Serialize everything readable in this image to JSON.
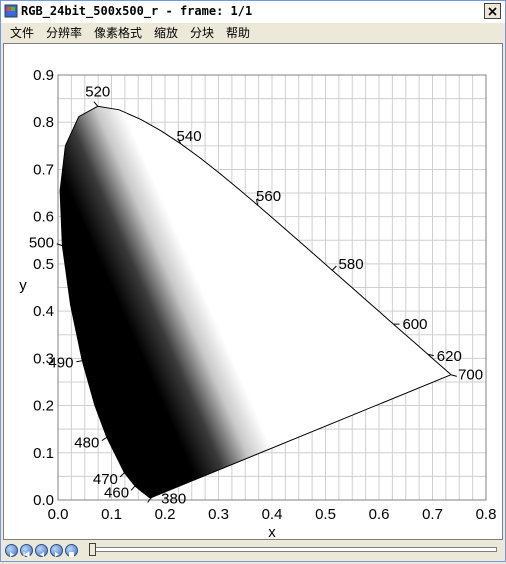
{
  "window": {
    "title": "RGB_24bit_500x500_r - frame: 1/1"
  },
  "menu": [
    "文件",
    "分辨率",
    "像素格式",
    "缩放",
    "分块",
    "帮助"
  ],
  "chart_data": {
    "type": "scatter",
    "title": "",
    "xlabel": "x",
    "ylabel": "y",
    "xlim": [
      0.0,
      0.8
    ],
    "ylim": [
      0.0,
      0.9
    ],
    "xticks": [
      "0.0",
      "0.1",
      "0.2",
      "0.3",
      "0.4",
      "0.5",
      "0.6",
      "0.7",
      "0.8"
    ],
    "yticks": [
      "0.0",
      "0.1",
      "0.2",
      "0.3",
      "0.4",
      "0.5",
      "0.6",
      "0.7",
      "0.8",
      "0.9"
    ],
    "grid": true,
    "locus": [
      [
        0.1741,
        0.005
      ],
      [
        0.1738,
        0.0049
      ],
      [
        0.1726,
        0.0048
      ],
      [
        0.1714,
        0.0051
      ],
      [
        0.1689,
        0.0069
      ],
      [
        0.1644,
        0.0109
      ],
      [
        0.1566,
        0.0177
      ],
      [
        0.144,
        0.0297
      ],
      [
        0.1241,
        0.0578
      ],
      [
        0.0913,
        0.1327
      ],
      [
        0.0687,
        0.2007
      ],
      [
        0.0454,
        0.295
      ],
      [
        0.0235,
        0.4127
      ],
      [
        0.0082,
        0.5384
      ],
      [
        0.0039,
        0.6548
      ],
      [
        0.0139,
        0.7502
      ],
      [
        0.0389,
        0.812
      ],
      [
        0.0743,
        0.8338
      ],
      [
        0.1142,
        0.8262
      ],
      [
        0.1547,
        0.8059
      ],
      [
        0.1929,
        0.7816
      ],
      [
        0.2296,
        0.7543
      ],
      [
        0.2658,
        0.7243
      ],
      [
        0.3016,
        0.6923
      ],
      [
        0.3373,
        0.6589
      ],
      [
        0.3731,
        0.6245
      ],
      [
        0.4087,
        0.5896
      ],
      [
        0.4441,
        0.5547
      ],
      [
        0.4788,
        0.5202
      ],
      [
        0.5125,
        0.4866
      ],
      [
        0.5448,
        0.4544
      ],
      [
        0.5752,
        0.4242
      ],
      [
        0.6029,
        0.3965
      ],
      [
        0.627,
        0.3725
      ],
      [
        0.6482,
        0.3514
      ],
      [
        0.6658,
        0.334
      ],
      [
        0.6801,
        0.3197
      ],
      [
        0.6915,
        0.3083
      ],
      [
        0.7006,
        0.2993
      ],
      [
        0.7079,
        0.292
      ],
      [
        0.714,
        0.2859
      ],
      [
        0.719,
        0.2809
      ],
      [
        0.723,
        0.277
      ],
      [
        0.726,
        0.274
      ],
      [
        0.7283,
        0.2717
      ],
      [
        0.73,
        0.27
      ],
      [
        0.7311,
        0.2689
      ],
      [
        0.732,
        0.268
      ],
      [
        0.7327,
        0.2673
      ],
      [
        0.7334,
        0.2666
      ],
      [
        0.734,
        0.266
      ],
      [
        0.7344,
        0.2656
      ],
      [
        0.7346,
        0.2654
      ],
      [
        0.7347,
        0.2653
      ]
    ],
    "wavelength_labels": [
      {
        "label": "380",
        "x": 0.1741,
        "y": 0.005,
        "pos": "right"
      },
      {
        "label": "460",
        "x": 0.144,
        "y": 0.0297,
        "pos": "left"
      },
      {
        "label": "470",
        "x": 0.1241,
        "y": 0.0578,
        "pos": "left"
      },
      {
        "label": "480",
        "x": 0.0913,
        "y": 0.1327,
        "pos": "left"
      },
      {
        "label": "490",
        "x": 0.0454,
        "y": 0.295,
        "pos": "left"
      },
      {
        "label": "500",
        "x": 0.0082,
        "y": 0.5384,
        "pos": "left"
      },
      {
        "label": "520",
        "x": 0.0743,
        "y": 0.8338,
        "pos": "top"
      },
      {
        "label": "540",
        "x": 0.2296,
        "y": 0.7543,
        "pos": "right"
      },
      {
        "label": "560",
        "x": 0.3731,
        "y": 0.6245,
        "pos": "right"
      },
      {
        "label": "580",
        "x": 0.5125,
        "y": 0.4866,
        "pos": "right"
      },
      {
        "label": "600",
        "x": 0.627,
        "y": 0.3725,
        "pos": "right"
      },
      {
        "label": "620",
        "x": 0.6915,
        "y": 0.3083,
        "pos": "right"
      },
      {
        "label": "700",
        "x": 0.7347,
        "y": 0.2653,
        "pos": "right"
      }
    ]
  }
}
